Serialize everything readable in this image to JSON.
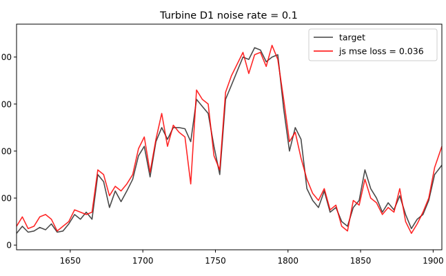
{
  "chart_data": {
    "type": "line",
    "title": "Turbine D1 noise rate = 0.1",
    "xlabel": "",
    "ylabel": "",
    "xlim": [
      1613,
      1906
    ],
    "ylim": [
      -20,
      940
    ],
    "xticks": [
      1650,
      1700,
      1750,
      1800,
      1850,
      1900
    ],
    "xtick_labels": [
      "1650",
      "1700",
      "1750",
      "1800",
      "1850",
      "1900"
    ],
    "yticks": [
      0,
      200,
      400,
      600,
      800
    ],
    "ytick_labels": [
      "0",
      "00",
      "00",
      "00",
      "00"
    ],
    "grid": false,
    "legend_position": "top-right",
    "series": [
      {
        "name": "target",
        "color": "#404040",
        "points": [
          [
            1613,
            50
          ],
          [
            1617,
            80
          ],
          [
            1621,
            55
          ],
          [
            1625,
            60
          ],
          [
            1629,
            75
          ],
          [
            1633,
            65
          ],
          [
            1637,
            90
          ],
          [
            1641,
            55
          ],
          [
            1645,
            60
          ],
          [
            1649,
            90
          ],
          [
            1653,
            130
          ],
          [
            1657,
            110
          ],
          [
            1661,
            140
          ],
          [
            1665,
            110
          ],
          [
            1669,
            300
          ],
          [
            1673,
            270
          ],
          [
            1677,
            160
          ],
          [
            1681,
            230
          ],
          [
            1685,
            185
          ],
          [
            1689,
            230
          ],
          [
            1693,
            280
          ],
          [
            1697,
            380
          ],
          [
            1701,
            420
          ],
          [
            1705,
            290
          ],
          [
            1709,
            440
          ],
          [
            1713,
            500
          ],
          [
            1717,
            450
          ],
          [
            1721,
            500
          ],
          [
            1725,
            500
          ],
          [
            1729,
            495
          ],
          [
            1733,
            440
          ],
          [
            1737,
            620
          ],
          [
            1741,
            590
          ],
          [
            1745,
            560
          ],
          [
            1749,
            420
          ],
          [
            1753,
            300
          ],
          [
            1757,
            620
          ],
          [
            1761,
            680
          ],
          [
            1765,
            740
          ],
          [
            1769,
            800
          ],
          [
            1773,
            790
          ],
          [
            1777,
            840
          ],
          [
            1781,
            830
          ],
          [
            1785,
            780
          ],
          [
            1789,
            800
          ],
          [
            1793,
            810
          ],
          [
            1797,
            580
          ],
          [
            1801,
            400
          ],
          [
            1805,
            500
          ],
          [
            1809,
            450
          ],
          [
            1813,
            240
          ],
          [
            1817,
            190
          ],
          [
            1821,
            160
          ],
          [
            1825,
            230
          ],
          [
            1829,
            140
          ],
          [
            1833,
            160
          ],
          [
            1837,
            100
          ],
          [
            1841,
            80
          ],
          [
            1845,
            160
          ],
          [
            1849,
            190
          ],
          [
            1853,
            320
          ],
          [
            1857,
            240
          ],
          [
            1861,
            200
          ],
          [
            1865,
            140
          ],
          [
            1869,
            180
          ],
          [
            1873,
            150
          ],
          [
            1877,
            210
          ],
          [
            1881,
            130
          ],
          [
            1885,
            70
          ],
          [
            1889,
            110
          ],
          [
            1893,
            130
          ],
          [
            1897,
            190
          ],
          [
            1901,
            300
          ],
          [
            1906,
            340
          ]
        ]
      },
      {
        "name": "js mse loss = 0.036",
        "color": "#ff0000",
        "points": [
          [
            1613,
            80
          ],
          [
            1617,
            120
          ],
          [
            1621,
            70
          ],
          [
            1625,
            80
          ],
          [
            1629,
            120
          ],
          [
            1633,
            130
          ],
          [
            1637,
            110
          ],
          [
            1641,
            60
          ],
          [
            1645,
            80
          ],
          [
            1649,
            100
          ],
          [
            1653,
            150
          ],
          [
            1657,
            140
          ],
          [
            1661,
            130
          ],
          [
            1665,
            140
          ],
          [
            1669,
            320
          ],
          [
            1673,
            300
          ],
          [
            1677,
            210
          ],
          [
            1681,
            250
          ],
          [
            1685,
            230
          ],
          [
            1689,
            260
          ],
          [
            1693,
            300
          ],
          [
            1697,
            410
          ],
          [
            1701,
            460
          ],
          [
            1705,
            310
          ],
          [
            1709,
            450
          ],
          [
            1713,
            560
          ],
          [
            1717,
            420
          ],
          [
            1721,
            510
          ],
          [
            1725,
            480
          ],
          [
            1729,
            460
          ],
          [
            1733,
            260
          ],
          [
            1737,
            660
          ],
          [
            1741,
            620
          ],
          [
            1745,
            600
          ],
          [
            1749,
            380
          ],
          [
            1753,
            320
          ],
          [
            1757,
            650
          ],
          [
            1761,
            720
          ],
          [
            1765,
            770
          ],
          [
            1769,
            820
          ],
          [
            1773,
            730
          ],
          [
            1777,
            810
          ],
          [
            1781,
            820
          ],
          [
            1785,
            760
          ],
          [
            1789,
            850
          ],
          [
            1793,
            790
          ],
          [
            1797,
            620
          ],
          [
            1801,
            440
          ],
          [
            1805,
            480
          ],
          [
            1809,
            370
          ],
          [
            1813,
            280
          ],
          [
            1817,
            220
          ],
          [
            1821,
            190
          ],
          [
            1825,
            240
          ],
          [
            1829,
            150
          ],
          [
            1833,
            170
          ],
          [
            1837,
            80
          ],
          [
            1841,
            60
          ],
          [
            1845,
            190
          ],
          [
            1849,
            170
          ],
          [
            1853,
            280
          ],
          [
            1857,
            200
          ],
          [
            1861,
            180
          ],
          [
            1865,
            130
          ],
          [
            1869,
            160
          ],
          [
            1873,
            140
          ],
          [
            1877,
            240
          ],
          [
            1881,
            100
          ],
          [
            1885,
            50
          ],
          [
            1889,
            90
          ],
          [
            1893,
            140
          ],
          [
            1897,
            200
          ],
          [
            1901,
            330
          ],
          [
            1906,
            420
          ]
        ]
      }
    ]
  }
}
